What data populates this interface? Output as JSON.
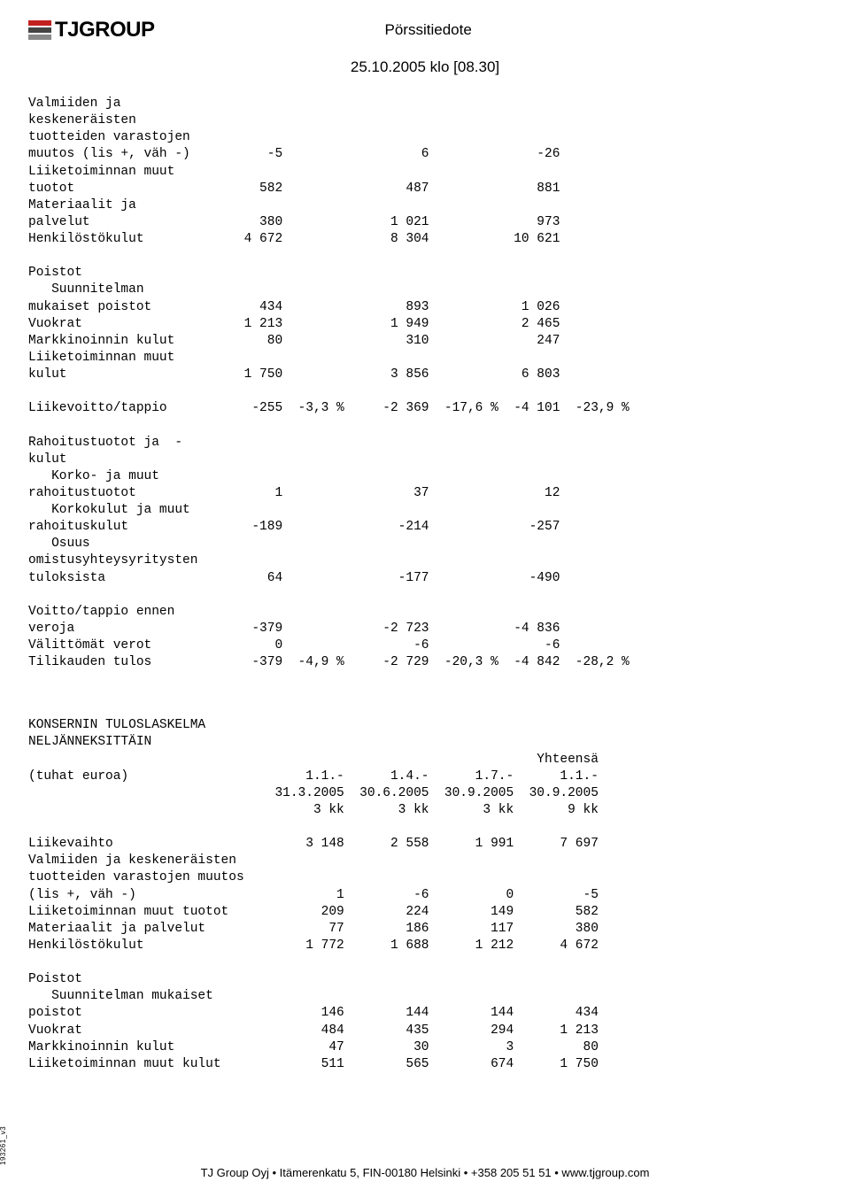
{
  "header": {
    "logo_text": "TJGROUP",
    "release_title": "Pörssitiedote",
    "release_date": "25.10.2005 klo [08.30]"
  },
  "section1": {
    "lines": [
      "Valmiiden ja",
      "keskeneräisten",
      "tuotteiden varastojen",
      "muutos (lis +, väh -)          -5                  6              -26",
      "Liiketoiminnan muut",
      "tuotot                        582                487              881",
      "Materiaalit ja",
      "palvelut                      380              1 021              973",
      "Henkilöstökulut             4 672              8 304           10 621",
      "",
      "Poistot",
      "   Suunnitelman",
      "mukaiset poistot              434                893            1 026",
      "Vuokrat                     1 213              1 949            2 465",
      "Markkinoinnin kulut            80                310              247",
      "Liiketoiminnan muut",
      "kulut                       1 750              3 856            6 803",
      "",
      "Liikevoitto/tappio           -255  -3,3 %     -2 369  -17,6 %  -4 101  -23,9 %",
      "",
      "Rahoitustuotot ja  -",
      "kulut",
      "   Korko- ja muut",
      "rahoitustuotot                  1                 37               12",
      "   Korkokulut ja muut",
      "rahoituskulut                -189               -214             -257",
      "   Osuus",
      "omistusyhteysyritysten",
      "tuloksista                     64               -177             -490",
      "",
      "Voitto/tappio ennen",
      "veroja                       -379             -2 723           -4 836",
      "Välittömät verot                0                 -6               -6",
      "Tilikauden tulos             -379  -4,9 %     -2 729  -20,3 %  -4 842  -28,2 %"
    ]
  },
  "section2": {
    "lines": [
      "KONSERNIN TULOSLASKELMA",
      "NELJÄNNEKSITTÄIN",
      "                                                                  Yhteensä",
      "(tuhat euroa)                       1.1.-      1.4.-      1.7.-      1.1.-",
      "                                31.3.2005  30.6.2005  30.9.2005  30.9.2005",
      "                                     3 kk       3 kk       3 kk       9 kk",
      "",
      "Liikevaihto                         3 148      2 558      1 991      7 697",
      "Valmiiden ja keskeneräisten",
      "tuotteiden varastojen muutos",
      "(lis +, väh -)                          1         -6          0         -5",
      "Liiketoiminnan muut tuotot            209        224        149        582",
      "Materiaalit ja palvelut                77        186        117        380",
      "Henkilöstökulut                     1 772      1 688      1 212      4 672",
      "",
      "Poistot",
      "   Suunnitelman mukaiset",
      "poistot                               146        144        144        434",
      "Vuokrat                               484        435        294      1 213",
      "Markkinoinnin kulut                    47         30          3         80",
      "Liiketoiminnan muut kulut             511        565        674      1 750"
    ]
  },
  "footer": {
    "text": "TJ Group Oyj • Itämerenkatu 5, FIN-00180 Helsinki • +358 205 51 51  • www.tjgroup.com"
  },
  "side_code": "193261_v3"
}
